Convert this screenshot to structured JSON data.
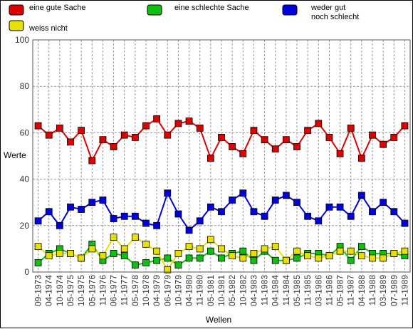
{
  "chart_data": {
    "type": "line",
    "title": "",
    "xlabel": "Wellen",
    "ylabel": "Werte",
    "ylim": [
      0,
      100
    ],
    "yticks": [
      0,
      20,
      40,
      60,
      80,
      100
    ],
    "grid": true,
    "legend_position": "top",
    "categories": [
      "09-1973",
      "04-1974",
      "10-1974",
      "05-1975",
      "10-1975",
      "05-1976",
      "11-1976",
      "06-1977",
      "11-1977",
      "05-1978",
      "10-1978",
      "04-1979",
      "06-1979",
      "10-1979",
      "04-1980",
      "11-1980",
      "05-1981",
      "10-1981",
      "05-1982",
      "10-1982",
      "04-1983",
      "11-1983",
      "04-1984",
      "11-1984",
      "05-1985",
      "11-1985",
      "03-1986",
      "11-1986",
      "05-1987",
      "11-1987",
      "04-1988",
      "11-1988",
      "03-1989",
      "07-1989",
      "11-1989"
    ],
    "series": [
      {
        "name": "eine gute Sache",
        "color": "#e00000",
        "values": [
          63,
          59,
          62,
          56,
          61,
          48,
          57,
          54,
          59,
          58,
          63,
          66,
          59,
          64,
          65,
          62,
          49,
          58,
          54,
          51,
          61,
          57,
          53,
          57,
          54,
          61,
          64,
          58,
          51,
          62,
          49,
          59,
          55,
          58,
          63
        ]
      },
      {
        "name": "eine schlechte Sache",
        "color": "#10c010",
        "values": [
          4,
          8,
          10,
          8,
          6,
          12,
          5,
          8,
          7,
          3,
          4,
          5,
          6,
          3,
          6,
          6,
          9,
          6,
          8,
          9,
          5,
          9,
          5,
          5,
          6,
          8,
          8,
          7,
          11,
          5,
          11,
          8,
          8,
          8,
          7
        ]
      },
      {
        "name": "weder gut noch schlecht",
        "color": "#0000e0",
        "values": [
          22,
          26,
          20,
          28,
          27,
          30,
          31,
          23,
          24,
          24,
          21,
          20,
          34,
          25,
          18,
          22,
          28,
          26,
          31,
          34,
          26,
          24,
          31,
          33,
          30,
          24,
          22,
          28,
          28,
          24,
          33,
          26,
          30,
          26,
          21
        ]
      },
      {
        "name": "weiss nicht",
        "color": "#e8e000",
        "values": [
          11,
          7,
          8,
          8,
          6,
          10,
          7,
          15,
          10,
          15,
          12,
          9,
          1,
          8,
          11,
          10,
          14,
          10,
          7,
          6,
          8,
          10,
          11,
          5,
          9,
          7,
          6,
          7,
          9,
          9,
          7,
          6,
          6,
          8,
          9
        ]
      }
    ]
  }
}
